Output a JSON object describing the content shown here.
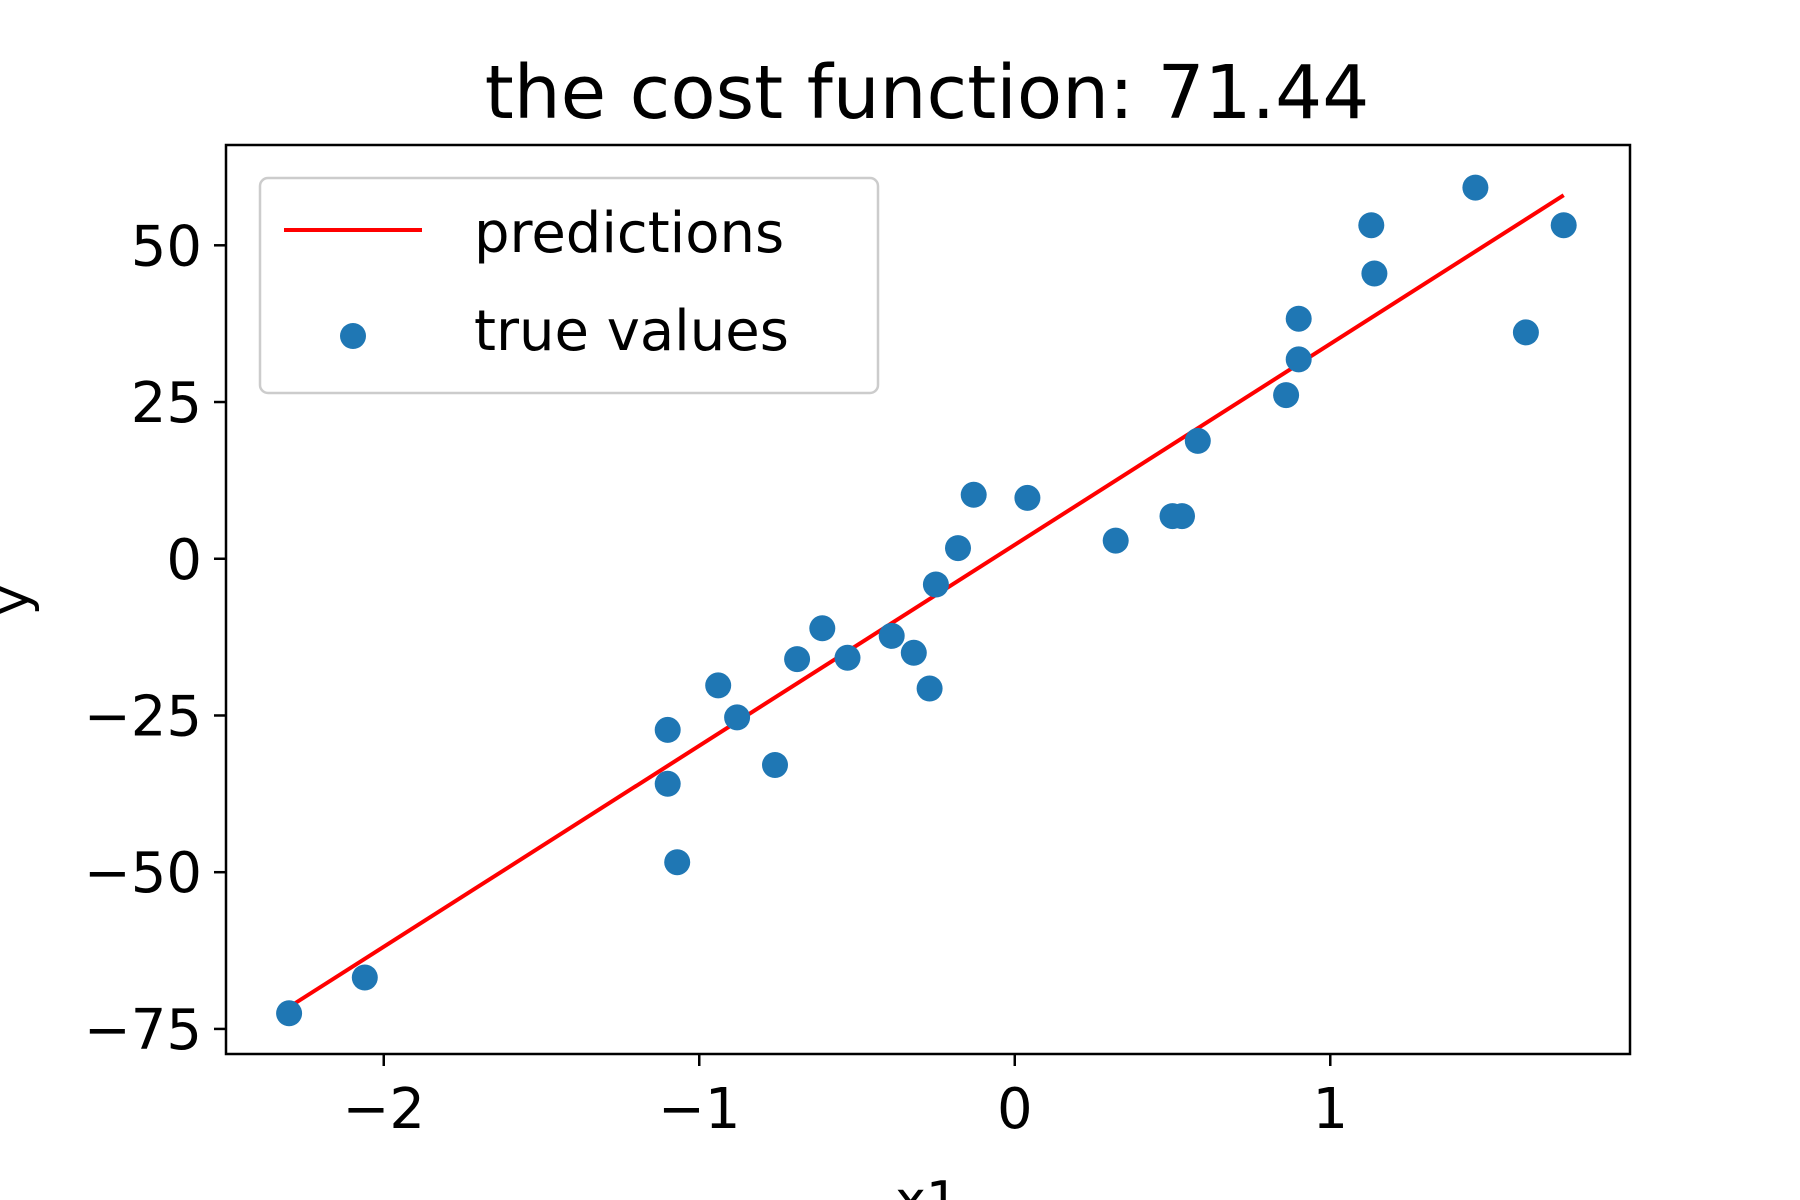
{
  "chart_data": {
    "type": "scatter",
    "title": "the cost function: 71.44",
    "xlabel": "x1",
    "ylabel": "y",
    "xlim": [
      -2.5,
      1.95
    ],
    "ylim": [
      -79,
      66
    ],
    "xticks": [
      {
        "value": -2,
        "label": "−2"
      },
      {
        "value": -1,
        "label": "−1"
      },
      {
        "value": 0,
        "label": "0"
      },
      {
        "value": 1,
        "label": "1"
      }
    ],
    "yticks": [
      {
        "value": -75,
        "label": "−75"
      },
      {
        "value": -50,
        "label": "−50"
      },
      {
        "value": -25,
        "label": "−25"
      },
      {
        "value": 0,
        "label": "0"
      },
      {
        "value": 25,
        "label": "25"
      },
      {
        "value": 50,
        "label": "50"
      }
    ],
    "grid": false,
    "legend": {
      "position": "top-left",
      "entries": [
        {
          "label": "predictions",
          "kind": "line",
          "color": "#ff0000"
        },
        {
          "label": "true values",
          "kind": "marker",
          "color": "#1f77b4"
        }
      ]
    },
    "series": [
      {
        "name": "true values",
        "kind": "scatter",
        "color": "#1f77b4",
        "points": [
          [
            -2.3,
            -72.5
          ],
          [
            -2.06,
            -66.8
          ],
          [
            -1.1,
            -27.3
          ],
          [
            -1.1,
            -35.9
          ],
          [
            -1.07,
            -48.4
          ],
          [
            -0.94,
            -20.2
          ],
          [
            -0.88,
            -25.3
          ],
          [
            -0.76,
            -32.9
          ],
          [
            -0.69,
            -16.0
          ],
          [
            -0.61,
            -11.1
          ],
          [
            -0.53,
            -15.8
          ],
          [
            -0.39,
            -12.3
          ],
          [
            -0.32,
            -15.0
          ],
          [
            -0.27,
            -20.7
          ],
          [
            -0.25,
            -4.1
          ],
          [
            -0.18,
            1.7
          ],
          [
            -0.13,
            10.2
          ],
          [
            0.04,
            9.7
          ],
          [
            0.32,
            2.9
          ],
          [
            0.5,
            6.8
          ],
          [
            0.53,
            6.8
          ],
          [
            0.58,
            18.8
          ],
          [
            0.86,
            26.1
          ],
          [
            0.9,
            38.3
          ],
          [
            0.9,
            31.8
          ],
          [
            1.13,
            53.2
          ],
          [
            1.14,
            45.5
          ],
          [
            1.46,
            59.2
          ],
          [
            1.62,
            36.1
          ],
          [
            1.74,
            53.2
          ]
        ]
      },
      {
        "name": "predictions",
        "kind": "line",
        "color": "#ff0000",
        "points": [
          [
            -2.3,
            -71.5
          ],
          [
            1.74,
            58.0
          ]
        ]
      }
    ]
  }
}
